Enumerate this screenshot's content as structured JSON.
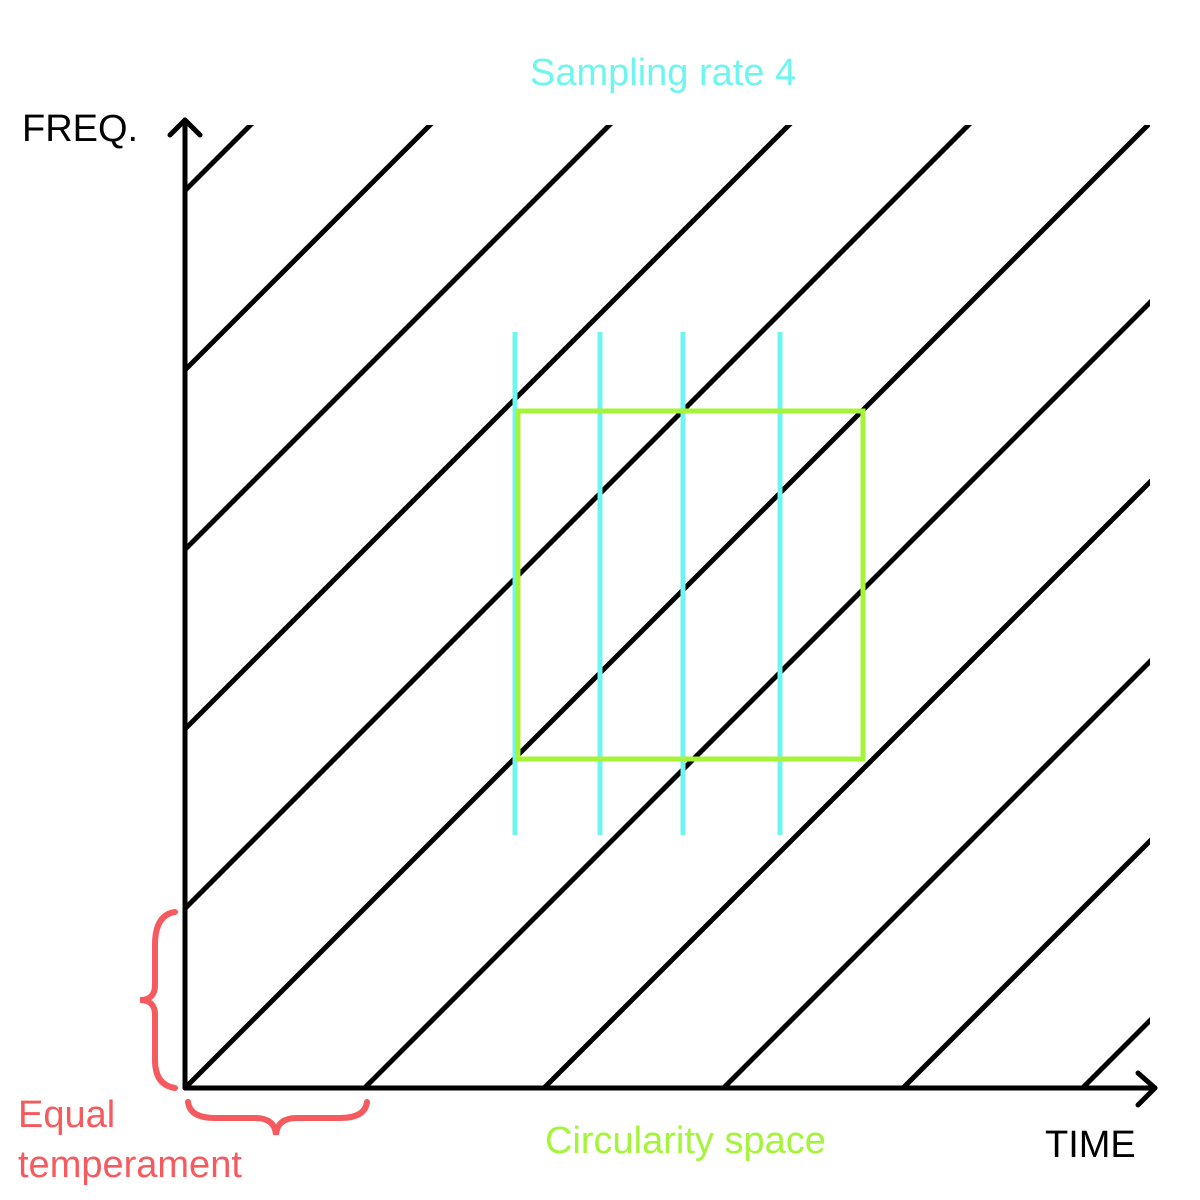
{
  "labels": {
    "y_axis": "FREQ.",
    "x_axis": "TIME",
    "sampling": "Sampling rate 4",
    "circularity": "Circularity space",
    "equal_temperament_line1": "Equal",
    "equal_temperament_line2": "temperament"
  },
  "colors": {
    "axes": "#000000",
    "diagonals": "#000000",
    "sampling": "#6ff5f0",
    "circularity": "#a4f43a",
    "equal_temperament": "#f55a5f"
  },
  "diagram": {
    "diagonal_line_count": 11,
    "sampling_line_count": 4
  }
}
